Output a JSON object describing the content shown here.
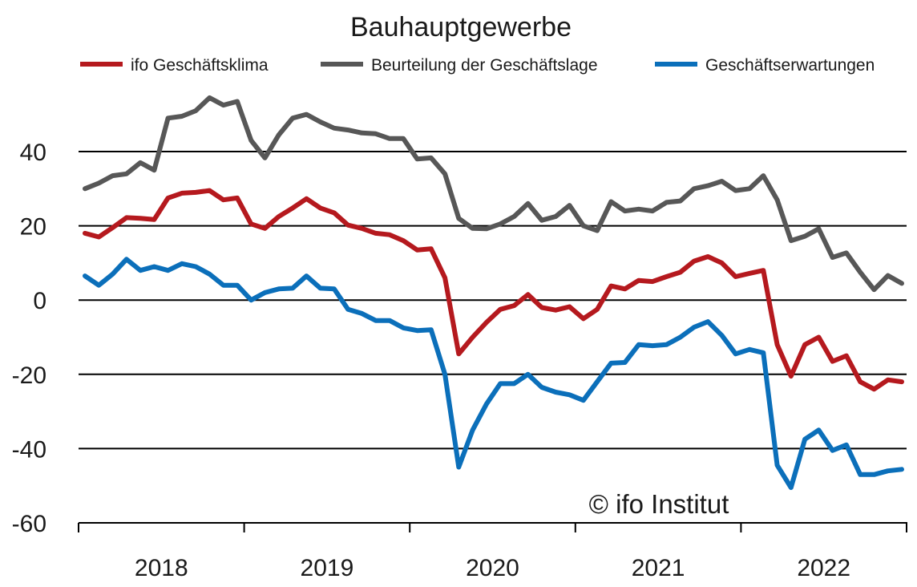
{
  "chart_data": {
    "type": "line",
    "title": "Bauhauptgewerbe",
    "watermark": "© ifo Institut",
    "xlabel": "",
    "ylabel": "",
    "ylim": [
      -60,
      60
    ],
    "yticks": [
      40,
      20,
      0,
      -20,
      -40,
      -60
    ],
    "ytick_labels": [
      "40",
      "20",
      "0",
      "-20",
      "-40",
      "-60"
    ],
    "x_start": "2018-01",
    "x_end": "2022-12",
    "year_labels": [
      "2018",
      "2019",
      "2020",
      "2021",
      "2022"
    ],
    "grid": "horizontal",
    "legend_position": "top",
    "series": [
      {
        "name": "ifo Geschäftsklima",
        "color": "#b5191e",
        "values": [
          18,
          17,
          19.5,
          22.2,
          22,
          21.7,
          27.5,
          28.8,
          29,
          29.5,
          27,
          27.5,
          20.5,
          19.3,
          22.5,
          24.8,
          27.3,
          24.8,
          23.5,
          20.2,
          19.3,
          18,
          17.6,
          16,
          13.5,
          13.8,
          6,
          -14.5,
          -10,
          -6,
          -2.5,
          -1.5,
          1.5,
          -2,
          -2.7,
          -1.8,
          -5,
          -2.5,
          3.8,
          3,
          5.3,
          5,
          6.3,
          7.5,
          10.5,
          11.7,
          10,
          6.3,
          7.2,
          8,
          -12,
          -20.5,
          -12,
          -10,
          -16.5,
          -15,
          -22,
          -24,
          -21.5,
          -22
        ]
      },
      {
        "name": "Beurteilung der Geschäftslage",
        "color": "#575757",
        "values": [
          30,
          31.5,
          33.5,
          34,
          37,
          35,
          49,
          49.5,
          51,
          54.5,
          52.5,
          53.5,
          43,
          38.3,
          44.5,
          49,
          50,
          48,
          46.3,
          45.8,
          45,
          44.8,
          43.5,
          43.5,
          38,
          38.3,
          34,
          22,
          19.3,
          19.2,
          20.5,
          22.5,
          26,
          21.5,
          22.5,
          25.5,
          20,
          18.7,
          26.5,
          24,
          24.5,
          24,
          26.3,
          26.7,
          30,
          30.8,
          32,
          29.5,
          30,
          33.5,
          27,
          16,
          17.2,
          19.2,
          11.5,
          12.7,
          7.5,
          2.8,
          6.6,
          4.5
        ]
      },
      {
        "name": "Geschäftserwartungen",
        "color": "#0b6fba",
        "values": [
          6.5,
          4,
          7,
          11,
          8,
          9,
          8,
          9.8,
          9,
          7,
          4,
          4,
          0,
          2,
          3,
          3.2,
          6.5,
          3.2,
          3,
          -2.5,
          -3.6,
          -5.5,
          -5.5,
          -7.5,
          -8.2,
          -8,
          -20,
          -45,
          -35,
          -28,
          -22.5,
          -22.5,
          -20,
          -23.5,
          -24.8,
          -25.5,
          -27,
          -22,
          -17,
          -16.8,
          -12,
          -12.3,
          -12,
          -10,
          -7.3,
          -5.8,
          -9.5,
          -14.5,
          -13.3,
          -14.2,
          -44.5,
          -50.5,
          -37.5,
          -35,
          -40.5,
          -39,
          -47,
          -47,
          -46,
          -45.6
        ]
      }
    ]
  }
}
